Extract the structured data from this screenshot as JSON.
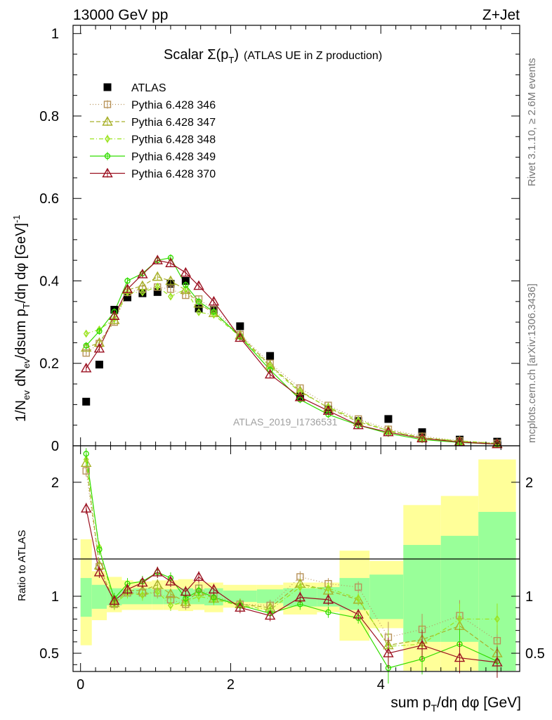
{
  "header": {
    "left": "13000 GeV pp",
    "right": "Z+Jet"
  },
  "side_text": {
    "rivet": "Rivet 3.1.10, ≥ 2.6M events",
    "mcplots": "mcplots.cern.ch [arXiv:1306.3436]"
  },
  "watermark": "ATLAS_2019_I1736531",
  "chart_data": [
    {
      "type": "line",
      "title": "Scalar Σ(p_T) (ATLAS UE in Z production)",
      "title_parts": {
        "main": "Scalar Σ(p",
        "sub": "T",
        "close": ")",
        "tail": "(ATLAS UE in Z production)"
      },
      "ylabel": "1/N_ev dN_ev/dsum p_T/dη dφ [GeV]^-1",
      "ylabel_parts": {
        "a": "1/N",
        "a_sub": "ev",
        "b": " dN",
        "b_sub": "ev",
        "c": "/dsum p",
        "c_sub": "T",
        "d": "/dη dφ  [GeV]",
        "d_sup": "-1"
      },
      "xlim": [
        -0.1,
        5.85
      ],
      "ylim": [
        0,
        1.02
      ],
      "yticks": [
        0,
        0.2,
        0.4,
        0.6,
        0.8,
        1
      ],
      "ytick_labels": [
        "0",
        "0.2",
        "0.4",
        "0.6",
        "0.8",
        "1"
      ],
      "x": [
        0.075,
        0.25,
        0.45,
        0.625,
        0.825,
        1.025,
        1.2,
        1.4,
        1.575,
        1.775,
        2.125,
        2.525,
        2.925,
        3.3,
        3.7,
        4.1,
        4.55,
        5.05,
        5.55
      ],
      "series": [
        {
          "name": "ATLAS",
          "color": "#000000",
          "marker": "filled-square",
          "dash": "none",
          "values": [
            0.107,
            0.197,
            0.33,
            0.36,
            0.37,
            0.373,
            0.393,
            0.4,
            0.333,
            0.33,
            0.29,
            0.218,
            0.12,
            0.088,
            0.06,
            0.065,
            0.033,
            0.015,
            0.01
          ]
        },
        {
          "name": "Pythia 6.428 346",
          "color": "#b8935a",
          "marker": "open-square",
          "dash": "1,3",
          "values": [
            0.225,
            0.248,
            0.3,
            0.372,
            0.38,
            0.385,
            0.38,
            0.365,
            0.356,
            0.33,
            0.27,
            0.2,
            0.14,
            0.098,
            0.065,
            0.04,
            0.023,
            0.012,
            0.006
          ]
        },
        {
          "name": "Pythia 6.428 347",
          "color": "#a8b02a",
          "marker": "open-triangle",
          "dash": "6,3",
          "values": [
            0.238,
            0.25,
            0.305,
            0.378,
            0.388,
            0.41,
            0.4,
            0.378,
            0.345,
            0.322,
            0.268,
            0.195,
            0.133,
            0.092,
            0.058,
            0.037,
            0.02,
            0.011,
            0.005
          ]
        },
        {
          "name": "Pythia 6.428 348",
          "color": "#9be31e",
          "marker": "open-diamond",
          "dash": "6,3,1,3",
          "values": [
            0.272,
            0.282,
            0.308,
            0.372,
            0.372,
            0.386,
            0.362,
            0.38,
            0.324,
            0.318,
            0.265,
            0.192,
            0.13,
            0.094,
            0.062,
            0.036,
            0.019,
            0.012,
            0.006
          ]
        },
        {
          "name": "Pythia 6.428 349",
          "color": "#33dd00",
          "marker": "open-circle",
          "dash": "none",
          "values": [
            0.243,
            0.278,
            0.325,
            0.4,
            0.418,
            0.45,
            0.456,
            0.39,
            0.35,
            0.325,
            0.265,
            0.184,
            0.112,
            0.076,
            0.05,
            0.03,
            0.015,
            0.008,
            0.004
          ]
        },
        {
          "name": "Pythia 6.428 370",
          "color": "#9b1020",
          "marker": "open-triangle",
          "dash": "none",
          "values": [
            0.188,
            0.236,
            0.315,
            0.38,
            0.416,
            0.45,
            0.443,
            0.42,
            0.388,
            0.35,
            0.262,
            0.173,
            0.118,
            0.085,
            0.05,
            0.033,
            0.018,
            0.009,
            0.004
          ]
        }
      ],
      "legend": "top-left"
    },
    {
      "type": "line",
      "ylabel": "Ratio to ATLAS",
      "xlabel": "sum p_T/dη dφ [GeV]",
      "xlabel_parts": {
        "a": "sum p",
        "a_sub": "T",
        "b": "/dη dφ [GeV]"
      },
      "xlim": [
        -0.1,
        5.85
      ],
      "ylim": [
        0.34,
        2.32
      ],
      "yticks": [
        0.5,
        1,
        2
      ],
      "ytick_labels": [
        "0.5",
        "1",
        "2"
      ],
      "xticks": [
        0,
        2,
        4
      ],
      "xtick_labels": [
        "0",
        "2",
        "4"
      ],
      "reference": 1,
      "bins": [
        [
          0,
          0.15
        ],
        [
          0.15,
          0.35
        ],
        [
          0.35,
          0.55
        ],
        [
          0.55,
          0.7
        ],
        [
          0.7,
          0.95
        ],
        [
          0.95,
          1.1
        ],
        [
          1.1,
          1.3
        ],
        [
          1.3,
          1.5
        ],
        [
          1.5,
          1.65
        ],
        [
          1.65,
          1.9
        ],
        [
          1.9,
          2.35
        ],
        [
          2.35,
          2.7
        ],
        [
          2.7,
          3.15
        ],
        [
          3.15,
          3.45
        ],
        [
          3.45,
          3.85
        ],
        [
          3.85,
          4.3
        ],
        [
          4.3,
          4.8
        ],
        [
          4.8,
          5.3
        ],
        [
          5.3,
          5.8
        ]
      ],
      "band_yellow": [
        [
          0.57,
          1.5
        ],
        [
          0.79,
          1.22
        ],
        [
          0.86,
          1.17
        ],
        [
          0.88,
          1.14
        ],
        [
          0.88,
          1.13
        ],
        [
          0.88,
          1.14
        ],
        [
          0.88,
          1.14
        ],
        [
          0.87,
          1.15
        ],
        [
          0.88,
          1.13
        ],
        [
          0.86,
          1.12
        ],
        [
          0.9,
          1.1
        ],
        [
          0.88,
          1.1
        ],
        [
          0.84,
          1.12
        ],
        [
          0.86,
          1.12
        ],
        [
          0.61,
          1.4
        ],
        [
          0.72,
          1.31
        ],
        [
          0.34,
          1.8
        ],
        [
          0.34,
          1.88
        ],
        [
          0.34,
          2.2
        ]
      ],
      "band_green": [
        [
          0.82,
          1.16
        ],
        [
          0.89,
          1.1
        ],
        [
          0.92,
          1.07
        ],
        [
          0.93,
          1.06
        ],
        [
          0.93,
          1.07
        ],
        [
          0.93,
          1.06
        ],
        [
          0.93,
          1.06
        ],
        [
          0.93,
          1.07
        ],
        [
          0.93,
          1.06
        ],
        [
          0.92,
          1.07
        ],
        [
          0.95,
          1.05
        ],
        [
          0.94,
          1.06
        ],
        [
          0.91,
          1.07
        ],
        [
          0.91,
          1.08
        ],
        [
          0.88,
          1.16
        ],
        [
          0.8,
          1.19
        ],
        [
          0.6,
          1.45
        ],
        [
          0.6,
          1.53
        ],
        [
          0.34,
          1.74
        ]
      ],
      "series": [
        {
          "name": "Pythia 6.428 346",
          "values": [
            2.1,
            1.26,
            0.93,
            1.03,
            1.03,
            1.03,
            0.97,
            0.93,
            1.07,
            1.0,
            0.93,
            0.92,
            1.17,
            1.11,
            1.08,
            0.64,
            0.71,
            0.83,
            0.61
          ]
        },
        {
          "name": "Pythia 6.428 347",
          "values": [
            2.17,
            1.27,
            0.94,
            1.05,
            1.05,
            1.1,
            1.02,
            0.95,
            1.04,
            0.98,
            0.93,
            0.9,
            1.11,
            1.05,
            0.97,
            0.57,
            0.62,
            0.74,
            0.5
          ]
        },
        {
          "name": "Pythia 6.428 348",
          "values": [
            2.2,
            1.43,
            0.93,
            1.03,
            1.01,
            1.04,
            0.92,
            0.95,
            1.0,
            0.97,
            0.92,
            0.88,
            1.08,
            1.07,
            0.98,
            0.56,
            0.58,
            0.8,
            0.8
          ]
        },
        {
          "name": "Pythia 6.428 349",
          "values": [
            2.25,
            1.41,
            0.98,
            1.11,
            1.13,
            1.21,
            1.16,
            0.98,
            1.05,
            0.99,
            0.92,
            0.85,
            0.93,
            0.86,
            0.81,
            0.37,
            0.45,
            0.58,
            0.43
          ]
        },
        {
          "name": "Pythia 6.428 370",
          "values": [
            1.77,
            1.21,
            0.96,
            1.06,
            1.12,
            1.21,
            1.13,
            1.04,
            1.17,
            1.06,
            0.9,
            0.83,
            0.99,
            0.97,
            0.84,
            0.5,
            0.57,
            0.46,
            0.42
          ]
        }
      ]
    }
  ]
}
